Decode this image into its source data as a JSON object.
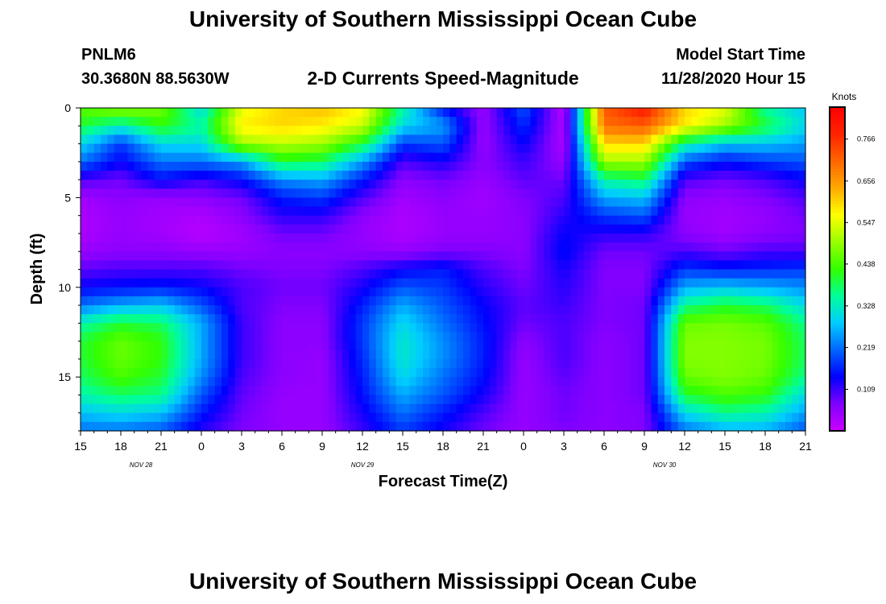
{
  "header": {
    "title_top": "University of Southern Mississippi Ocean Cube",
    "station": "PNLM6",
    "coords": "30.3680N 88.5630W",
    "subtitle": "2-D Currents Speed-Magnitude",
    "start_label": "Model Start Time",
    "start_value": "11/28/2020 Hour 15",
    "title_bottom": "University of Southern Mississippi Ocean Cube"
  },
  "chart_data": {
    "type": "heatmap",
    "title": "2-D Currents Speed-Magnitude",
    "xlabel": "Forecast Time(Z)",
    "ylabel": "Depth (ft)",
    "x_ticks": [
      "15",
      "18",
      "21",
      "0",
      "3",
      "6",
      "9",
      "12",
      "15",
      "18",
      "21",
      "0",
      "3",
      "6",
      "9",
      "12",
      "15",
      "18",
      "21"
    ],
    "date_labels": [
      "NOV 28",
      "NOV 29",
      "NOV 30"
    ],
    "y_ticks": [
      "0",
      "5",
      "10",
      "15"
    ],
    "y_range": [
      0,
      18
    ],
    "x_range_hours": [
      0,
      54
    ],
    "colorbar": {
      "unit": "Knots",
      "ticks": [
        "0.766",
        "0.656",
        "0.547",
        "0.438",
        "0.328",
        "0.219",
        "0.109"
      ],
      "range": [
        0.0,
        0.85
      ],
      "colors": [
        "#cc00ff",
        "#8000ff",
        "#0000ff",
        "#0066ff",
        "#00ccff",
        "#00ff99",
        "#33ff00",
        "#99ff00",
        "#ffff00",
        "#ffaa00",
        "#ff6600",
        "#ff2200",
        "#ff0000"
      ]
    },
    "time_hours": [
      0,
      3,
      6,
      9,
      12,
      15,
      18,
      21,
      24,
      27,
      30,
      33,
      36,
      39,
      42,
      45,
      48,
      51,
      54
    ],
    "depth_levels_ft": [
      0,
      1,
      2,
      3,
      4,
      5,
      6,
      7,
      8,
      9,
      10,
      11,
      12,
      13,
      14,
      15,
      16,
      17,
      18
    ],
    "speed_knots": [
      [
        0.45,
        0.5,
        0.47,
        0.3,
        0.55,
        0.6,
        0.62,
        0.57,
        0.35,
        0.15,
        0.05,
        0.2,
        0.02,
        0.72,
        0.8,
        0.6,
        0.55,
        0.35,
        0.28
      ],
      [
        0.4,
        0.33,
        0.42,
        0.35,
        0.58,
        0.6,
        0.58,
        0.53,
        0.3,
        0.25,
        0.05,
        0.17,
        0.03,
        0.7,
        0.72,
        0.58,
        0.5,
        0.4,
        0.3
      ],
      [
        0.3,
        0.18,
        0.3,
        0.3,
        0.5,
        0.52,
        0.5,
        0.4,
        0.18,
        0.2,
        0.05,
        0.14,
        0.03,
        0.6,
        0.6,
        0.35,
        0.28,
        0.28,
        0.25
      ],
      [
        0.22,
        0.14,
        0.22,
        0.22,
        0.25,
        0.4,
        0.38,
        0.25,
        0.1,
        0.13,
        0.06,
        0.11,
        0.05,
        0.5,
        0.5,
        0.2,
        0.15,
        0.18,
        0.2
      ],
      [
        0.1,
        0.08,
        0.15,
        0.11,
        0.15,
        0.24,
        0.26,
        0.16,
        0.06,
        0.08,
        0.05,
        0.09,
        0.08,
        0.35,
        0.38,
        0.1,
        0.08,
        0.1,
        0.14
      ],
      [
        0.04,
        0.06,
        0.05,
        0.06,
        0.08,
        0.16,
        0.18,
        0.1,
        0.04,
        0.06,
        0.04,
        0.07,
        0.1,
        0.26,
        0.28,
        0.06,
        0.05,
        0.07,
        0.1
      ],
      [
        0.03,
        0.05,
        0.04,
        0.03,
        0.06,
        0.12,
        0.12,
        0.06,
        0.03,
        0.05,
        0.05,
        0.06,
        0.12,
        0.18,
        0.2,
        0.05,
        0.04,
        0.05,
        0.08
      ],
      [
        0.03,
        0.05,
        0.04,
        0.02,
        0.04,
        0.08,
        0.08,
        0.05,
        0.03,
        0.05,
        0.05,
        0.06,
        0.14,
        0.12,
        0.12,
        0.06,
        0.04,
        0.06,
        0.07
      ],
      [
        0.05,
        0.06,
        0.06,
        0.05,
        0.05,
        0.06,
        0.06,
        0.06,
        0.05,
        0.07,
        0.07,
        0.06,
        0.15,
        0.08,
        0.08,
        0.1,
        0.08,
        0.1,
        0.1
      ],
      [
        0.09,
        0.1,
        0.1,
        0.1,
        0.08,
        0.07,
        0.07,
        0.1,
        0.14,
        0.16,
        0.1,
        0.07,
        0.13,
        0.07,
        0.07,
        0.18,
        0.16,
        0.17,
        0.18
      ],
      [
        0.14,
        0.15,
        0.16,
        0.14,
        0.1,
        0.08,
        0.08,
        0.13,
        0.2,
        0.18,
        0.12,
        0.08,
        0.12,
        0.07,
        0.07,
        0.26,
        0.28,
        0.26,
        0.24
      ],
      [
        0.22,
        0.26,
        0.28,
        0.2,
        0.1,
        0.07,
        0.07,
        0.16,
        0.26,
        0.2,
        0.14,
        0.09,
        0.11,
        0.07,
        0.08,
        0.36,
        0.4,
        0.38,
        0.3
      ],
      [
        0.34,
        0.4,
        0.38,
        0.26,
        0.11,
        0.06,
        0.06,
        0.18,
        0.3,
        0.22,
        0.15,
        0.08,
        0.1,
        0.07,
        0.08,
        0.46,
        0.47,
        0.45,
        0.36
      ],
      [
        0.4,
        0.46,
        0.42,
        0.26,
        0.11,
        0.06,
        0.06,
        0.18,
        0.32,
        0.24,
        0.16,
        0.06,
        0.1,
        0.06,
        0.08,
        0.48,
        0.48,
        0.47,
        0.38
      ],
      [
        0.4,
        0.46,
        0.42,
        0.26,
        0.11,
        0.06,
        0.05,
        0.17,
        0.32,
        0.24,
        0.16,
        0.05,
        0.1,
        0.06,
        0.08,
        0.48,
        0.48,
        0.47,
        0.38
      ],
      [
        0.38,
        0.44,
        0.4,
        0.24,
        0.1,
        0.06,
        0.05,
        0.16,
        0.3,
        0.22,
        0.15,
        0.05,
        0.09,
        0.06,
        0.08,
        0.46,
        0.48,
        0.46,
        0.36
      ],
      [
        0.34,
        0.38,
        0.36,
        0.2,
        0.09,
        0.05,
        0.05,
        0.15,
        0.26,
        0.2,
        0.13,
        0.05,
        0.08,
        0.06,
        0.08,
        0.4,
        0.44,
        0.42,
        0.3
      ],
      [
        0.28,
        0.3,
        0.28,
        0.16,
        0.08,
        0.05,
        0.05,
        0.13,
        0.22,
        0.16,
        0.1,
        0.05,
        0.08,
        0.06,
        0.07,
        0.3,
        0.36,
        0.34,
        0.25
      ],
      [
        0.22,
        0.22,
        0.2,
        0.12,
        0.07,
        0.05,
        0.05,
        0.11,
        0.18,
        0.13,
        0.08,
        0.05,
        0.07,
        0.06,
        0.07,
        0.22,
        0.26,
        0.26,
        0.2
      ]
    ]
  }
}
